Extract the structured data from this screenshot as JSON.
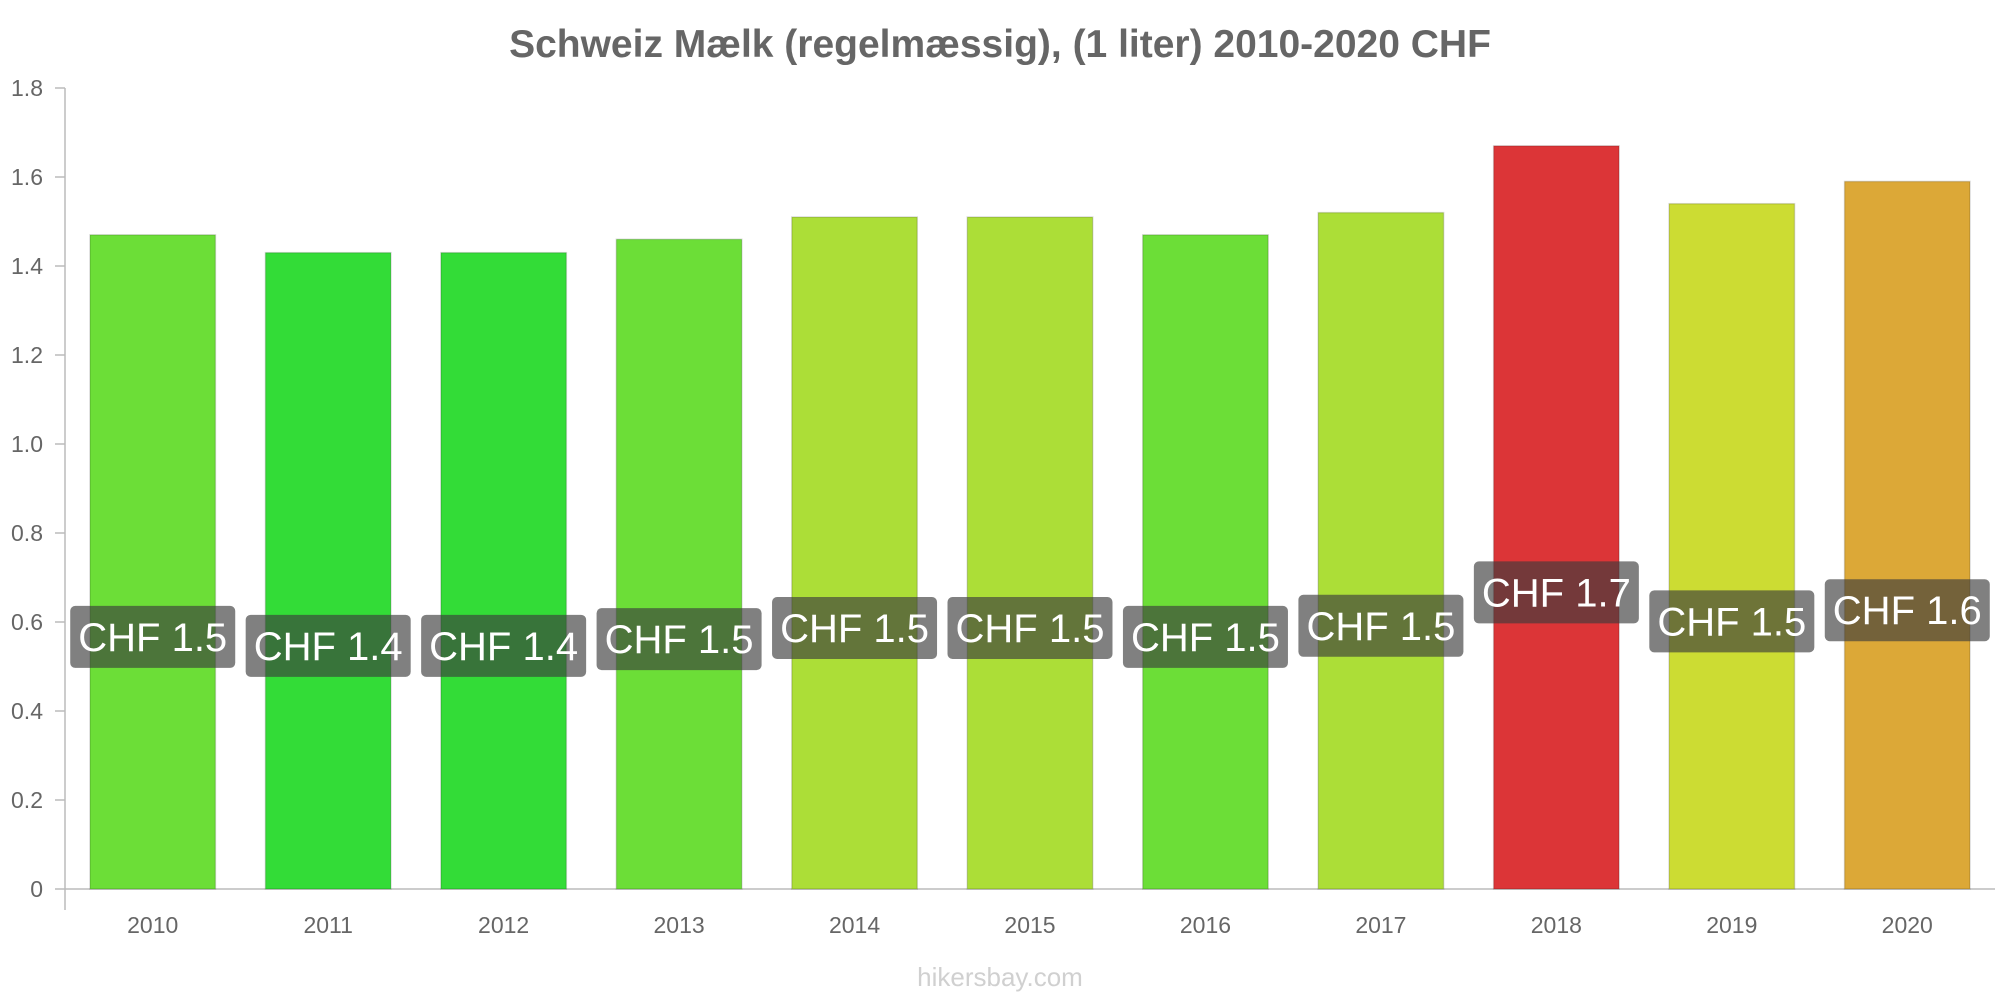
{
  "chart_data": {
    "type": "bar",
    "title": "Schweiz Mælk (regelmæssig), (1 liter) 2010-2020 CHF",
    "xlabel": "",
    "ylabel": "",
    "ylim": [
      0,
      1.8
    ],
    "yticks": [
      "0",
      "0.2",
      "0.4",
      "0.6",
      "0.8",
      "1.0",
      "1.2",
      "1.4",
      "1.6",
      "1.8"
    ],
    "categories": [
      "2010",
      "2011",
      "2012",
      "2013",
      "2014",
      "2015",
      "2016",
      "2017",
      "2018",
      "2019",
      "2020"
    ],
    "values": [
      1.47,
      1.43,
      1.43,
      1.46,
      1.51,
      1.51,
      1.47,
      1.52,
      1.67,
      1.54,
      1.59
    ],
    "data_labels": [
      "CHF 1.5",
      "CHF 1.4",
      "CHF 1.4",
      "CHF 1.5",
      "CHF 1.5",
      "CHF 1.5",
      "CHF 1.5",
      "CHF 1.5",
      "CHF 1.7",
      "CHF 1.5",
      "CHF 1.6"
    ],
    "colors": [
      "#6cde37",
      "#33dc37",
      "#33dc37",
      "#6cde37",
      "#acde37",
      "#acde37",
      "#6cde37",
      "#acde37",
      "#dc3537",
      "#ccdc33",
      "#dca837"
    ],
    "grid": false,
    "legend": "none"
  },
  "watermark": "hikersbay.com"
}
